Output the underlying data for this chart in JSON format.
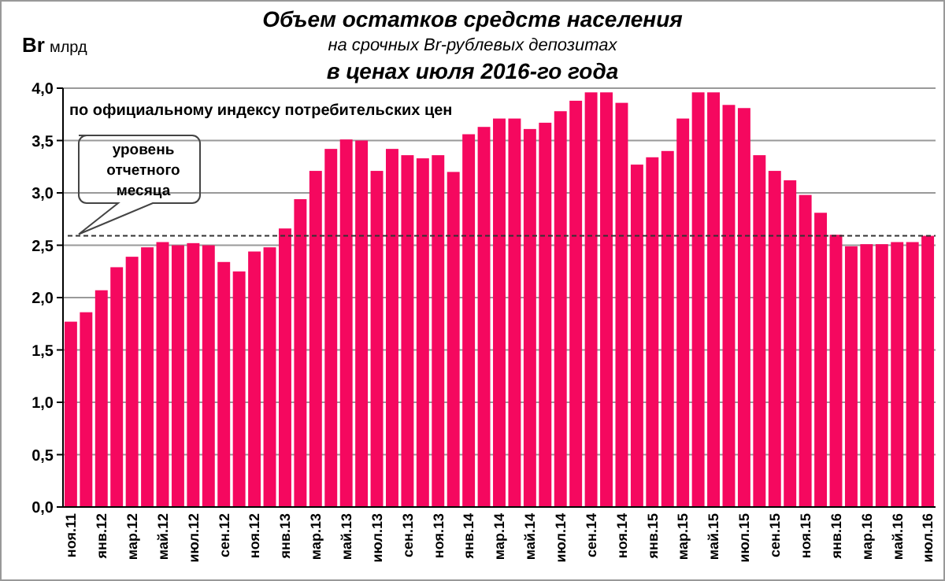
{
  "chart_data": {
    "type": "bar",
    "title": "Объем  остатков средств населения",
    "subtitle": "на срочных Br-рублевых депозитах",
    "annotations": [
      "в ценах  июля 2016-го года",
      "по официальному индексу потребительских цен"
    ],
    "ylabel": "Br млрд",
    "categories": [
      "ноя.11",
      null,
      "янв.12",
      null,
      "мар.12",
      null,
      "май.12",
      null,
      "июл.12",
      null,
      "сен.12",
      null,
      "ноя.12",
      null,
      "янв.13",
      null,
      "мар.13",
      null,
      "май.13",
      null,
      "июл.13",
      null,
      "сен.13",
      null,
      "ноя.13",
      null,
      "янв.14",
      null,
      "мар.14",
      null,
      "май.14",
      null,
      "июл.14",
      null,
      "сен.14",
      null,
      "ноя.14",
      null,
      "янв.15",
      null,
      "мар.15",
      null,
      "май.15",
      null,
      "июл.15",
      null,
      "сен.15",
      null,
      "ноя.15",
      null,
      "янв.16",
      null,
      "мар.16",
      null,
      "май.16",
      null,
      "июл.16"
    ],
    "values": [
      1.77,
      1.86,
      2.07,
      2.29,
      2.39,
      2.48,
      2.53,
      2.5,
      2.52,
      2.5,
      2.34,
      2.25,
      2.44,
      2.48,
      2.66,
      2.94,
      3.21,
      3.42,
      3.51,
      3.5,
      3.21,
      3.42,
      3.36,
      3.33,
      3.36,
      3.2,
      3.56,
      3.63,
      3.71,
      3.71,
      3.61,
      3.67,
      3.78,
      3.88,
      3.96,
      3.96,
      3.86,
      3.27,
      3.34,
      3.4,
      3.71,
      3.96,
      3.96,
      3.84,
      3.81,
      3.36,
      3.21,
      3.12,
      2.98,
      2.81,
      2.6,
      2.49,
      2.51,
      2.51,
      2.53,
      2.53,
      2.59
    ],
    "color": "#f5085f",
    "ylim": [
      0,
      4
    ],
    "yticks": [
      {
        "value": 0,
        "label": "0,0"
      },
      {
        "value": 0.5,
        "label": "0,5"
      },
      {
        "value": 1,
        "label": "1,0"
      },
      {
        "value": 1.5,
        "label": "1,5"
      },
      {
        "value": 2,
        "label": "2,0"
      },
      {
        "value": 2.5,
        "label": "2,5"
      },
      {
        "value": 3,
        "label": "3,0"
      },
      {
        "value": 3.5,
        "label": "3,5"
      },
      {
        "value": 4,
        "label": "4,0"
      }
    ],
    "grid": "y",
    "ref_lines": [
      {
        "axis": "y",
        "value": 2.59,
        "label": "уровень отчетного месяца",
        "line_style": "dashed",
        "color": "#333333"
      }
    ]
  }
}
